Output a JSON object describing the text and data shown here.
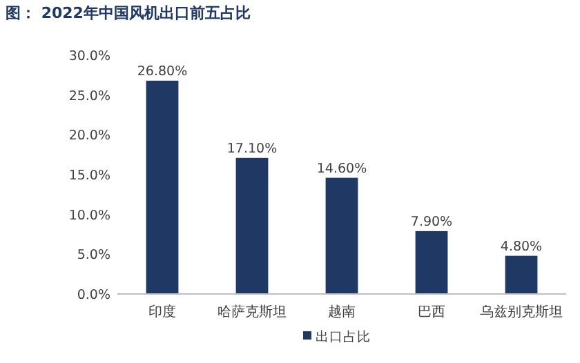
{
  "chart_data": {
    "type": "bar",
    "title": "图：  2022年中国风机出口前五占比",
    "categories": [
      "印度",
      "哈萨克斯坦",
      "越南",
      "巴西",
      "乌兹别克斯坦"
    ],
    "series": [
      {
        "name": "出口占比",
        "color": "#203864",
        "values": [
          26.8,
          17.1,
          14.6,
          7.9,
          4.8
        ],
        "value_labels": [
          "26.80%",
          "17.10%",
          "14.60%",
          "7.90%",
          "4.80%"
        ]
      }
    ],
    "ylim": [
      0,
      30
    ],
    "yticks": [
      {
        "value": 0,
        "label": "0.0%"
      },
      {
        "value": 5,
        "label": "5.0%"
      },
      {
        "value": 10,
        "label": "10.0%"
      },
      {
        "value": 15,
        "label": "15.0%"
      },
      {
        "value": 20,
        "label": "20.0%"
      },
      {
        "value": 25,
        "label": "25.0%"
      },
      {
        "value": 30,
        "label": "30.0%"
      }
    ],
    "grid": false,
    "legend": "bottom"
  }
}
